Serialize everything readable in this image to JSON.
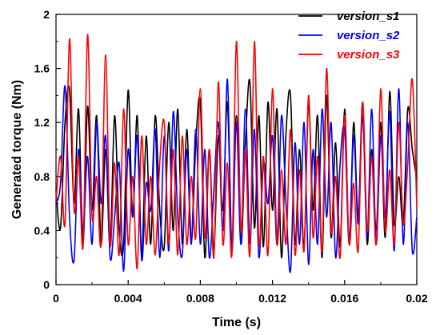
{
  "chart_data": {
    "type": "line",
    "xlabel": "Time (s)",
    "ylabel": "Generated torque (Nm)",
    "xlim": [
      0,
      0.02
    ],
    "ylim": [
      0,
      2
    ],
    "x_ticks": [
      0,
      0.004,
      0.008,
      0.012,
      0.016,
      0.02
    ],
    "x_tick_labels": [
      "0",
      "0.004",
      "0.008",
      "0.012",
      "0.016",
      "0.02"
    ],
    "y_ticks": [
      0,
      0.4,
      0.8,
      1.2,
      1.6,
      2
    ],
    "y_tick_labels": [
      "0",
      "0.4",
      "0.8",
      "1.2",
      "1.6",
      "2"
    ],
    "grid": false,
    "legend_position": "top-right",
    "series": [
      {
        "name": "version_s1",
        "color": "#000000",
        "x": [
          0,
          0.00025,
          0.0005,
          0.00075,
          0.001,
          0.00125,
          0.0015,
          0.00175,
          0.002,
          0.00225,
          0.0025,
          0.00275,
          0.003,
          0.00325,
          0.0035,
          0.00375,
          0.004,
          0.00425,
          0.0045,
          0.00475,
          0.005,
          0.00525,
          0.0055,
          0.00575,
          0.006,
          0.00625,
          0.0065,
          0.00675,
          0.007,
          0.00725,
          0.0075,
          0.00775,
          0.008,
          0.00825,
          0.0085,
          0.00875,
          0.009,
          0.00925,
          0.0095,
          0.00975,
          0.01,
          0.01025,
          0.0105,
          0.01075,
          0.011,
          0.01125,
          0.0115,
          0.01175,
          0.012,
          0.01225,
          0.0125,
          0.01275,
          0.013,
          0.01325,
          0.0135,
          0.01375,
          0.014,
          0.01425,
          0.0145,
          0.01475,
          0.015,
          0.01525,
          0.0155,
          0.01575,
          0.016,
          0.01625,
          0.0165,
          0.01675,
          0.017,
          0.01725,
          0.0175,
          0.01775,
          0.018,
          0.01825,
          0.0185,
          0.01875,
          0.019,
          0.01925,
          0.0195,
          0.01975,
          0.02
        ],
        "y": [
          0.7,
          0.42,
          1.2,
          1.44,
          0.6,
          1.3,
          0.3,
          1.32,
          0.55,
          1.25,
          0.3,
          1.0,
          0.28,
          1.25,
          0.4,
          0.3,
          1.44,
          0.5,
          1.25,
          0.22,
          1.1,
          0.3,
          1.25,
          0.55,
          0.28,
          1.2,
          0.4,
          1.3,
          0.3,
          1.15,
          0.32,
          1.05,
          1.35,
          0.2,
          1.0,
          0.25,
          1.1,
          0.55,
          1.35,
          0.3,
          1.25,
          0.3,
          1.05,
          1.5,
          0.42,
          1.25,
          0.28,
          1.35,
          0.55,
          1.3,
          0.2,
          1.12,
          1.4,
          0.3,
          1.0,
          0.28,
          1.35,
          0.55,
          1.25,
          0.2,
          1.4,
          0.35,
          1.05,
          0.28,
          1.3,
          0.3,
          1.2,
          0.5,
          1.35,
          0.3,
          1.0,
          0.4,
          1.2,
          0.35,
          1.43,
          0.45,
          0.8,
          0.45,
          1.3,
          1.0,
          0.78
        ]
      },
      {
        "name": "version_s2",
        "color": "#0000ff",
        "x": [
          0,
          0.00025,
          0.0005,
          0.00075,
          0.001,
          0.00125,
          0.0015,
          0.00175,
          0.002,
          0.00225,
          0.0025,
          0.00275,
          0.003,
          0.00325,
          0.0035,
          0.00375,
          0.004,
          0.00425,
          0.0045,
          0.00475,
          0.005,
          0.00525,
          0.0055,
          0.00575,
          0.006,
          0.00625,
          0.0065,
          0.00675,
          0.007,
          0.00725,
          0.0075,
          0.00775,
          0.008,
          0.00825,
          0.0085,
          0.00875,
          0.009,
          0.00925,
          0.0095,
          0.00975,
          0.01,
          0.01025,
          0.0105,
          0.01075,
          0.011,
          0.01125,
          0.0115,
          0.01175,
          0.012,
          0.01225,
          0.0125,
          0.01275,
          0.013,
          0.01325,
          0.0135,
          0.01375,
          0.014,
          0.01425,
          0.0145,
          0.01475,
          0.015,
          0.01525,
          0.0155,
          0.01575,
          0.016,
          0.01625,
          0.0165,
          0.01675,
          0.017,
          0.01725,
          0.0175,
          0.01775,
          0.018,
          0.01825,
          0.0185,
          0.01875,
          0.019,
          0.01925,
          0.0195,
          0.01975,
          0.02
        ],
        "y": [
          0.6,
          0.75,
          1.47,
          0.5,
          0.18,
          1.0,
          0.4,
          0.95,
          0.3,
          1.2,
          0.6,
          1.1,
          0.2,
          0.5,
          0.9,
          0.1,
          1.0,
          0.5,
          1.1,
          0.18,
          0.75,
          0.55,
          1.15,
          0.2,
          1.1,
          0.25,
          1.28,
          0.5,
          0.22,
          1.0,
          0.3,
          1.15,
          0.3,
          1.0,
          0.2,
          0.7,
          1.2,
          0.4,
          1.52,
          0.25,
          1.2,
          0.3,
          1.3,
          0.3,
          1.15,
          0.2,
          0.9,
          0.6,
          1.1,
          0.3,
          1.25,
          0.6,
          0.1,
          1.05,
          0.3,
          1.2,
          0.15,
          1.0,
          0.3,
          1.3,
          0.5,
          1.2,
          0.2,
          0.9,
          1.15,
          0.3,
          1.1,
          0.45,
          1.25,
          0.35,
          1.3,
          0.3,
          1.1,
          0.5,
          1.28,
          0.25,
          1.45,
          0.3,
          1.2,
          0.25,
          0.5
        ]
      },
      {
        "name": "version_s3",
        "color": "#ff0000",
        "x": [
          0,
          0.00025,
          0.0005,
          0.00075,
          0.001,
          0.00125,
          0.0015,
          0.00175,
          0.002,
          0.00225,
          0.0025,
          0.00275,
          0.003,
          0.00325,
          0.0035,
          0.00375,
          0.004,
          0.00425,
          0.0045,
          0.00475,
          0.005,
          0.00525,
          0.0055,
          0.00575,
          0.006,
          0.00625,
          0.0065,
          0.00675,
          0.007,
          0.00725,
          0.0075,
          0.00775,
          0.008,
          0.00825,
          0.0085,
          0.00875,
          0.009,
          0.00925,
          0.0095,
          0.00975,
          0.01,
          0.01025,
          0.0105,
          0.01075,
          0.011,
          0.01125,
          0.0115,
          0.01175,
          0.012,
          0.01225,
          0.0125,
          0.01275,
          0.013,
          0.01325,
          0.0135,
          0.01375,
          0.014,
          0.01425,
          0.0145,
          0.01475,
          0.015,
          0.01525,
          0.0155,
          0.01575,
          0.016,
          0.01625,
          0.0165,
          0.01675,
          0.017,
          0.01725,
          0.0175,
          0.01775,
          0.018,
          0.01825,
          0.0185,
          0.01875,
          0.019,
          0.01925,
          0.0195,
          0.01975,
          0.02
        ],
        "y": [
          0.62,
          0.95,
          0.45,
          1.82,
          0.55,
          0.95,
          0.28,
          1.85,
          0.5,
          0.8,
          0.3,
          1.7,
          0.3,
          0.9,
          0.22,
          1.3,
          0.3,
          0.8,
          0.12,
          1.1,
          0.3,
          0.8,
          0.22,
          0.9,
          1.2,
          0.3,
          1.0,
          0.22,
          1.1,
          0.3,
          0.8,
          0.35,
          1.45,
          0.35,
          1.0,
          0.2,
          1.5,
          0.3,
          0.9,
          0.22,
          1.8,
          0.4,
          1.0,
          0.22,
          1.8,
          0.3,
          0.95,
          0.22,
          1.45,
          0.3,
          0.85,
          0.3,
          1.15,
          0.22,
          0.85,
          0.25,
          1.4,
          0.35,
          0.95,
          0.25,
          1.6,
          0.4,
          0.8,
          0.2,
          1.25,
          0.3,
          0.75,
          0.25,
          1.35,
          0.4,
          0.95,
          0.3,
          1.45,
          0.4,
          0.85,
          0.3,
          1.2,
          0.45,
          0.9,
          1.52,
          0.58
        ]
      }
    ]
  }
}
